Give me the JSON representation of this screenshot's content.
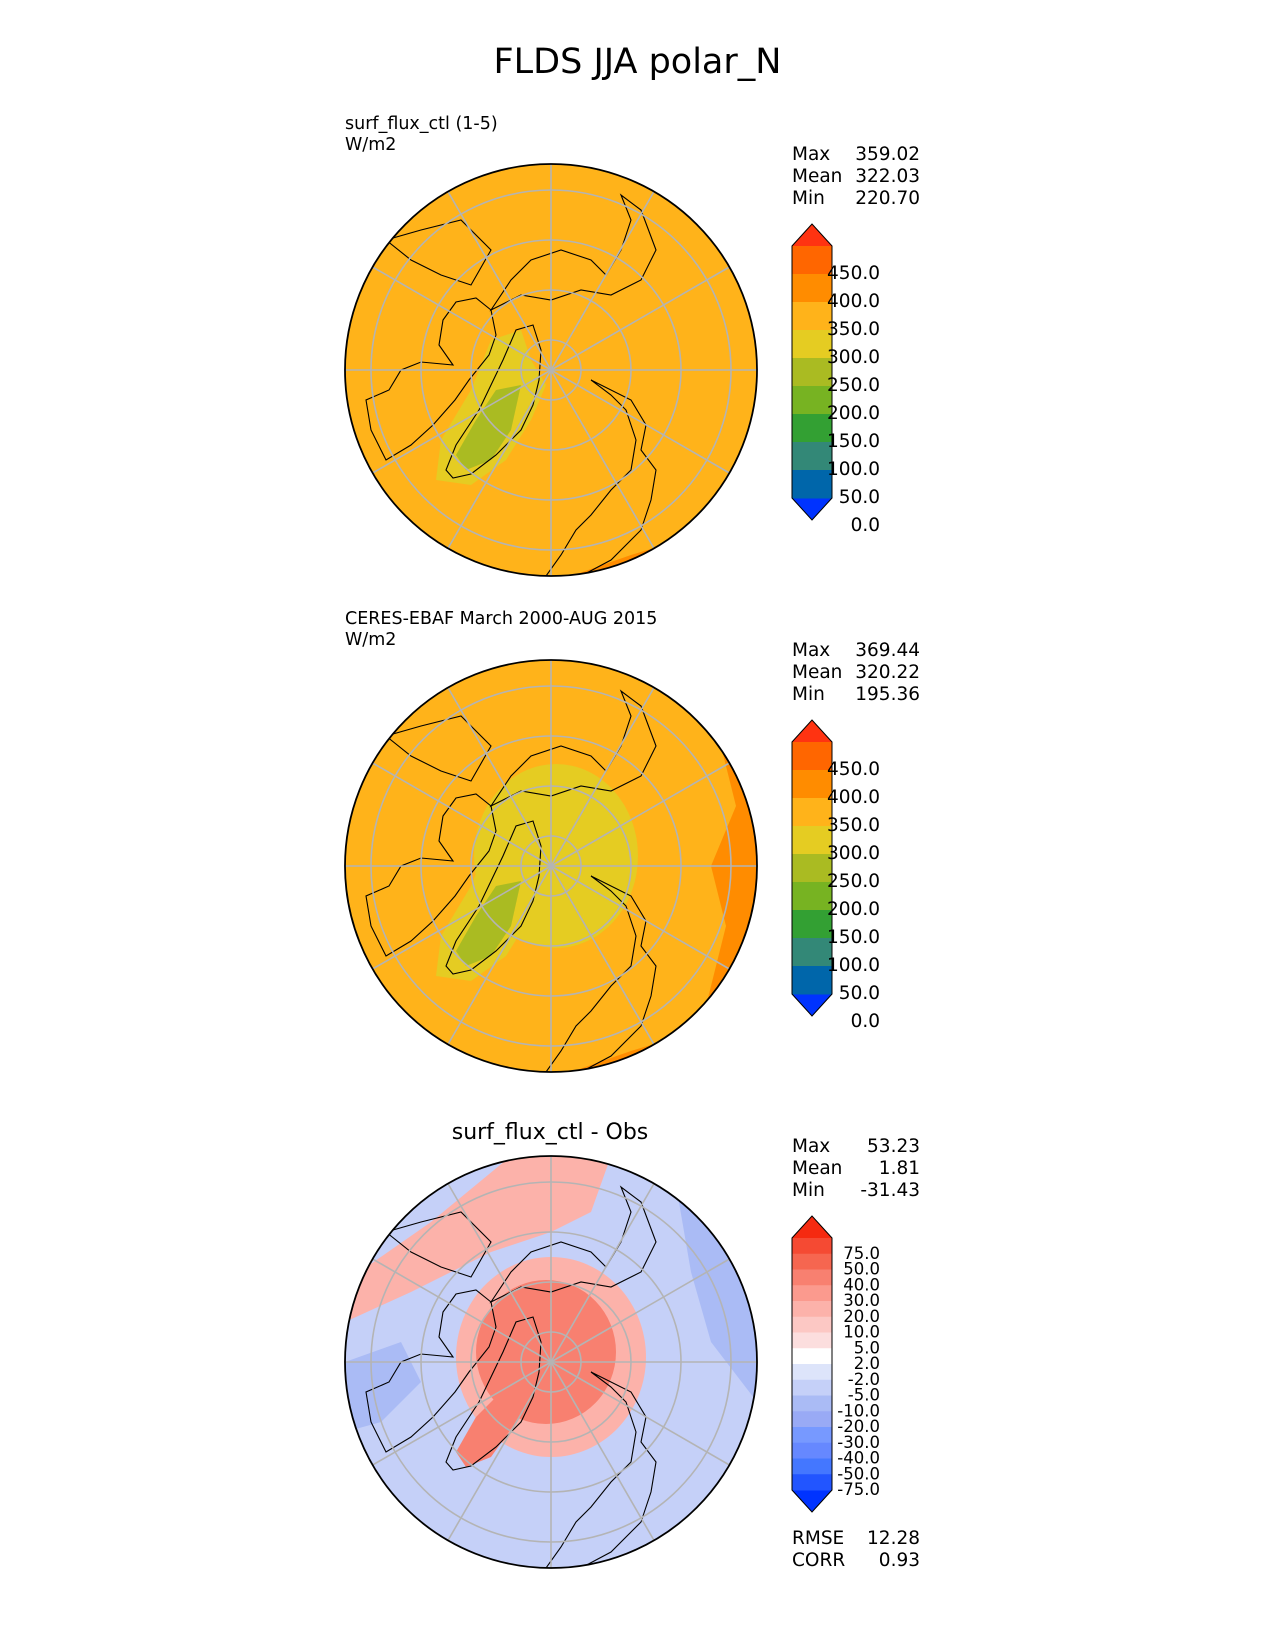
{
  "title": "FLDS JJA polar_N",
  "panels": [
    {
      "id": "test",
      "title_lines": [
        "surf_flux_ctl (1-5)",
        "W/m2"
      ],
      "stats": [
        {
          "label": "Max",
          "value": "359.02"
        },
        {
          "label": "Mean",
          "value": "322.03"
        },
        {
          "label": "Min",
          "value": "220.70"
        }
      ]
    },
    {
      "id": "ref",
      "title_lines": [
        "CERES-EBAF March 2000-AUG 2015",
        "W/m2"
      ],
      "stats": [
        {
          "label": "Max",
          "value": "369.44"
        },
        {
          "label": "Mean",
          "value": "320.22"
        },
        {
          "label": "Min",
          "value": "195.36"
        }
      ]
    },
    {
      "id": "diff",
      "title": "surf_flux_ctl - Obs",
      "stats": [
        {
          "label": "Max",
          "value": "53.23"
        },
        {
          "label": "Mean",
          "value": "1.81"
        },
        {
          "label": "Min",
          "value": "-31.43"
        }
      ],
      "footer_stats": [
        {
          "label": "RMSE",
          "value": "12.28"
        },
        {
          "label": "CORR",
          "value": "0.93"
        }
      ]
    }
  ],
  "colorbars": {
    "absolute": {
      "ticks": [
        "450.0",
        "400.0",
        "350.0",
        "300.0",
        "250.0",
        "200.0",
        "150.0",
        "100.0",
        "50.0",
        "0.0"
      ],
      "colors": [
        "#0033ff",
        "#0066aa",
        "#338877",
        "#33a033",
        "#77b322",
        "#aabb22",
        "#e5cc22",
        "#ffb31a",
        "#ff8c00",
        "#ff6600",
        "#ff3311"
      ]
    },
    "difference": {
      "ticks": [
        "75.0",
        "50.0",
        "40.0",
        "30.0",
        "20.0",
        "10.0",
        "5.0",
        "2.0",
        "-2.0",
        "-5.0",
        "-10.0",
        "-20.0",
        "-30.0",
        "-40.0",
        "-50.0",
        "-75.0"
      ],
      "colors": [
        "#0033ff",
        "#2255ff",
        "#4477ff",
        "#6688ff",
        "#7799ff",
        "#99aaf5",
        "#aabbf5",
        "#c5d0f8",
        "#dde4fa",
        "#ffffff",
        "#fcdede",
        "#fcc8c4",
        "#fcb2aa",
        "#fb9a8e",
        "#f88070",
        "#f66650",
        "#f54a33",
        "#f52a10"
      ]
    }
  },
  "map_colors": {
    "ocean_abs": "#ffb31a",
    "land_green": "#aabb22",
    "land_yellow": "#e5cc22",
    "dark_orange": "#ff8c00",
    "diff_red": "#f88070",
    "diff_pink": "#fcb2aa",
    "diff_blue": "#aabbf5",
    "diff_lightblue": "#c5d0f8"
  }
}
